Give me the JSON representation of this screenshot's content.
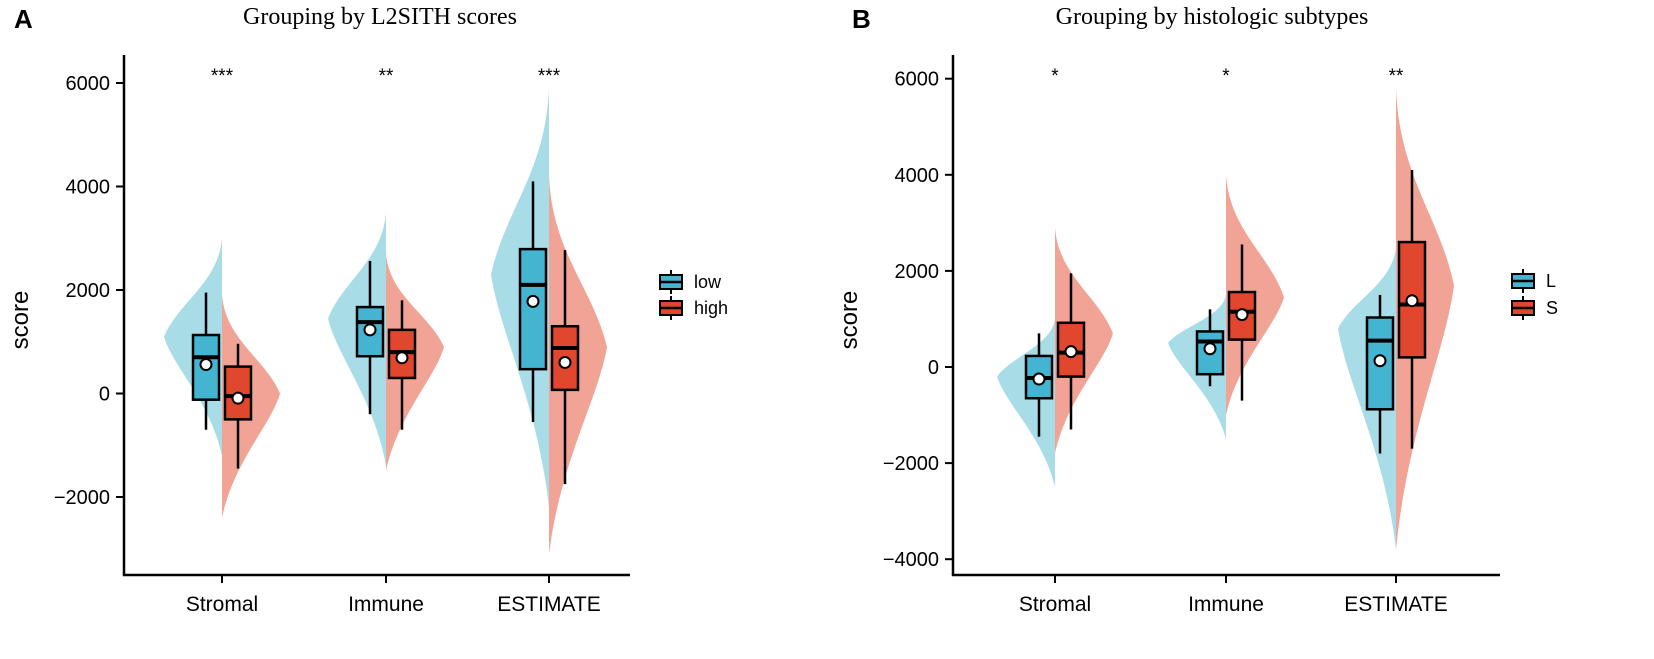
{
  "chart_data": [
    {
      "type": "violin-box",
      "panel_label": "A",
      "title": "Grouping by L2SITH scores",
      "xlabel": "",
      "ylabel": "score",
      "ylim": [
        -3500,
        6500
      ],
      "yticks": [
        -2000,
        0,
        2000,
        4000,
        6000
      ],
      "tick_labels": [
        "−2000",
        "0",
        "2000",
        "4000",
        "6000"
      ],
      "categories": [
        "Stromal",
        "Immune",
        "ESTIMATE"
      ],
      "significance": [
        "***",
        "**",
        "***"
      ],
      "legend": {
        "position": "right",
        "entries": [
          "low",
          "high"
        ]
      },
      "series": [
        {
          "name": "low",
          "color": "#45B4D1",
          "violin_color": "#A8DDE8",
          "boxes": [
            {
              "min": -700,
              "q1": -120,
              "median": 700,
              "q3": 1130,
              "max": 1950,
              "mean": 560,
              "vmin": -1200,
              "vmax": 3000,
              "peak": 1100
            },
            {
              "min": -400,
              "q1": 720,
              "median": 1380,
              "q3": 1670,
              "max": 2560,
              "mean": 1230,
              "vmin": -1400,
              "vmax": 3500,
              "peak": 1450
            },
            {
              "min": -550,
              "q1": 470,
              "median": 2100,
              "q3": 2790,
              "max": 4100,
              "mean": 1780,
              "vmin": -2200,
              "vmax": 5900,
              "peak": 2300
            }
          ]
        },
        {
          "name": "high",
          "color": "#E1462F",
          "violin_color": "#F1A496",
          "boxes": [
            {
              "min": -1450,
              "q1": -500,
              "median": -50,
              "q3": 520,
              "max": 960,
              "mean": -90,
              "vmin": -2400,
              "vmax": 1900,
              "peak": 0
            },
            {
              "min": -700,
              "q1": 300,
              "median": 800,
              "q3": 1230,
              "max": 1800,
              "mean": 690,
              "vmin": -1500,
              "vmax": 2700,
              "peak": 900
            },
            {
              "min": -1750,
              "q1": 70,
              "median": 880,
              "q3": 1300,
              "max": 2770,
              "mean": 600,
              "vmin": -3100,
              "vmax": 4200,
              "peak": 900
            }
          ]
        }
      ]
    },
    {
      "type": "violin-box",
      "panel_label": "B",
      "title": "Grouping by histologic subtypes",
      "xlabel": "",
      "ylabel": "score",
      "ylim": [
        -4400,
        6600
      ],
      "yticks": [
        -4000,
        -2000,
        0,
        2000,
        4000,
        6000
      ],
      "tick_labels": [
        "−4000",
        "−2000",
        "0",
        "2000",
        "4000",
        "6000"
      ],
      "categories": [
        "Stromal",
        "Immune",
        "ESTIMATE"
      ],
      "significance": [
        "*",
        "*",
        "**"
      ],
      "legend": {
        "position": "right",
        "entries": [
          "L",
          "S"
        ]
      },
      "series": [
        {
          "name": "L",
          "color": "#45B4D1",
          "violin_color": "#A8DDE8",
          "boxes": [
            {
              "min": -1450,
              "q1": -650,
              "median": -230,
              "q3": 230,
              "max": 700,
              "mean": -250,
              "vmin": -2500,
              "vmax": 1000,
              "peak": -200
            },
            {
              "min": -400,
              "q1": -150,
              "median": 530,
              "q3": 740,
              "max": 1200,
              "mean": 380,
              "vmin": -1500,
              "vmax": 1500,
              "peak": 500
            },
            {
              "min": -1800,
              "q1": -880,
              "median": 550,
              "q3": 1030,
              "max": 1500,
              "mean": 130,
              "vmin": -3800,
              "vmax": 2500,
              "peak": 800
            }
          ]
        },
        {
          "name": "S",
          "color": "#E1462F",
          "violin_color": "#F1A496",
          "boxes": [
            {
              "min": -1300,
              "q1": -200,
              "median": 300,
              "q3": 920,
              "max": 1950,
              "mean": 320,
              "vmin": -1800,
              "vmax": 2900,
              "peak": 700
            },
            {
              "min": -700,
              "q1": 570,
              "median": 1150,
              "q3": 1560,
              "max": 2550,
              "mean": 1090,
              "vmin": -1000,
              "vmax": 4000,
              "peak": 1450
            },
            {
              "min": -1700,
              "q1": 200,
              "median": 1300,
              "q3": 2600,
              "max": 4100,
              "mean": 1380,
              "vmin": -3800,
              "vmax": 5800,
              "peak": 1700
            }
          ]
        }
      ]
    }
  ]
}
